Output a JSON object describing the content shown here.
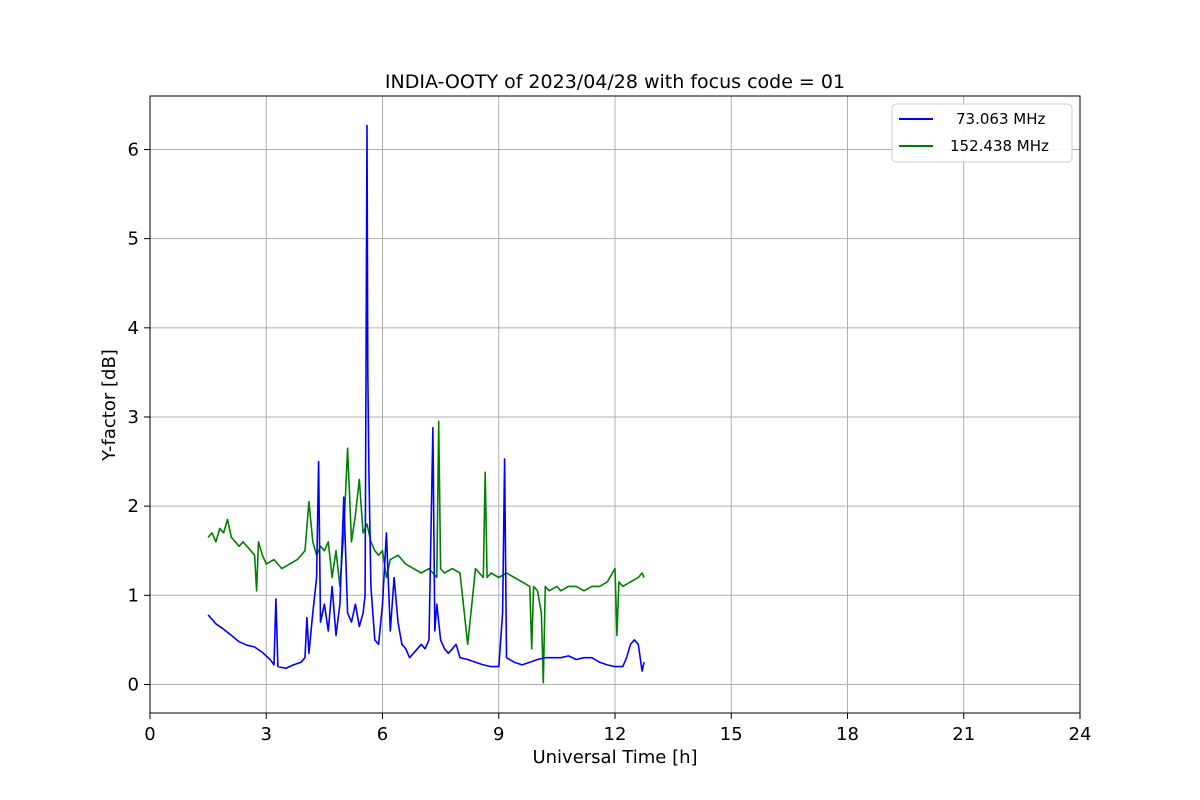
{
  "chart_data": {
    "type": "line",
    "title": "INDIA-OOTY of 2023/04/28 with focus code = 01",
    "xlabel": "Universal Time [h]",
    "ylabel": "Y-factor [dB]",
    "xlim": [
      0,
      24
    ],
    "ylim": [
      -0.32,
      6.6
    ],
    "xticks": [
      0,
      3,
      6,
      9,
      12,
      15,
      18,
      21,
      24
    ],
    "yticks": [
      0,
      1,
      2,
      3,
      4,
      5,
      6
    ],
    "grid": true,
    "legend_position": "top-right",
    "series": [
      {
        "name": "73.063 MHz",
        "color": "#0000ff",
        "x": [
          1.5,
          1.7,
          1.9,
          2.1,
          2.3,
          2.5,
          2.7,
          2.9,
          3.1,
          3.2,
          3.25,
          3.3,
          3.5,
          3.7,
          3.9,
          4.0,
          4.05,
          4.1,
          4.2,
          4.3,
          4.35,
          4.4,
          4.5,
          4.6,
          4.7,
          4.8,
          4.9,
          5.0,
          5.1,
          5.2,
          5.3,
          5.4,
          5.5,
          5.55,
          5.6,
          5.62,
          5.65,
          5.7,
          5.8,
          5.9,
          6.0,
          6.1,
          6.2,
          6.3,
          6.4,
          6.5,
          6.6,
          6.7,
          6.8,
          6.9,
          7.0,
          7.1,
          7.2,
          7.3,
          7.35,
          7.4,
          7.5,
          7.6,
          7.7,
          7.8,
          7.9,
          8.0,
          8.2,
          8.4,
          8.6,
          8.8,
          9.0,
          9.1,
          9.15,
          9.2,
          9.4,
          9.6,
          9.8,
          10.0,
          10.2,
          10.4,
          10.6,
          10.8,
          11.0,
          11.2,
          11.4,
          11.6,
          11.8,
          12.0,
          12.2,
          12.3,
          12.4,
          12.5,
          12.6,
          12.7,
          12.75
        ],
        "values": [
          0.78,
          0.68,
          0.62,
          0.55,
          0.48,
          0.44,
          0.42,
          0.36,
          0.28,
          0.22,
          0.96,
          0.2,
          0.18,
          0.22,
          0.25,
          0.3,
          0.75,
          0.35,
          0.8,
          1.2,
          2.5,
          0.7,
          0.9,
          0.6,
          1.1,
          0.55,
          0.9,
          2.1,
          0.8,
          0.7,
          0.9,
          0.65,
          0.8,
          1.0,
          6.27,
          3.5,
          2.4,
          1.1,
          0.5,
          0.45,
          0.9,
          1.7,
          0.6,
          1.2,
          0.7,
          0.45,
          0.4,
          0.3,
          0.35,
          0.4,
          0.45,
          0.4,
          0.5,
          2.88,
          0.6,
          0.9,
          0.5,
          0.4,
          0.35,
          0.4,
          0.45,
          0.3,
          0.28,
          0.25,
          0.22,
          0.2,
          0.2,
          0.8,
          2.53,
          0.3,
          0.25,
          0.22,
          0.25,
          0.28,
          0.3,
          0.3,
          0.3,
          0.32,
          0.28,
          0.3,
          0.3,
          0.25,
          0.22,
          0.2,
          0.2,
          0.3,
          0.45,
          0.5,
          0.45,
          0.15,
          0.25
        ]
      },
      {
        "name": "152.438 MHz",
        "color": "#008000",
        "x": [
          1.5,
          1.6,
          1.7,
          1.8,
          1.9,
          2.0,
          2.1,
          2.2,
          2.3,
          2.4,
          2.5,
          2.6,
          2.7,
          2.75,
          2.8,
          2.9,
          3.0,
          3.2,
          3.4,
          3.6,
          3.8,
          4.0,
          4.1,
          4.2,
          4.3,
          4.4,
          4.5,
          4.6,
          4.7,
          4.8,
          4.9,
          5.0,
          5.1,
          5.2,
          5.3,
          5.4,
          5.5,
          5.6,
          5.7,
          5.8,
          5.9,
          6.0,
          6.1,
          6.2,
          6.4,
          6.6,
          6.8,
          7.0,
          7.2,
          7.4,
          7.45,
          7.5,
          7.6,
          7.8,
          8.0,
          8.2,
          8.4,
          8.6,
          8.65,
          8.7,
          8.8,
          9.0,
          9.2,
          9.4,
          9.6,
          9.8,
          9.85,
          9.9,
          10.0,
          10.1,
          10.15,
          10.2,
          10.3,
          10.5,
          10.6,
          10.8,
          11.0,
          11.2,
          11.4,
          11.6,
          11.8,
          12.0,
          12.05,
          12.1,
          12.2,
          12.4,
          12.6,
          12.7,
          12.75
        ],
        "values": [
          1.65,
          1.7,
          1.6,
          1.75,
          1.7,
          1.85,
          1.65,
          1.6,
          1.55,
          1.6,
          1.55,
          1.5,
          1.45,
          1.05,
          1.6,
          1.45,
          1.35,
          1.4,
          1.3,
          1.35,
          1.4,
          1.5,
          2.05,
          1.6,
          1.45,
          1.55,
          1.5,
          1.6,
          1.2,
          1.5,
          1.1,
          1.7,
          2.65,
          1.6,
          1.9,
          2.3,
          1.7,
          1.8,
          1.6,
          1.5,
          1.45,
          1.5,
          1.2,
          1.4,
          1.45,
          1.35,
          1.3,
          1.25,
          1.3,
          1.2,
          2.95,
          1.3,
          1.25,
          1.3,
          1.25,
          0.45,
          1.3,
          1.2,
          2.38,
          1.2,
          1.25,
          1.2,
          1.25,
          1.2,
          1.15,
          1.1,
          0.4,
          1.1,
          1.05,
          0.8,
          0.02,
          1.1,
          1.05,
          1.1,
          1.05,
          1.1,
          1.1,
          1.05,
          1.1,
          1.1,
          1.15,
          1.3,
          0.55,
          1.15,
          1.1,
          1.15,
          1.2,
          1.25,
          1.2
        ]
      }
    ]
  }
}
